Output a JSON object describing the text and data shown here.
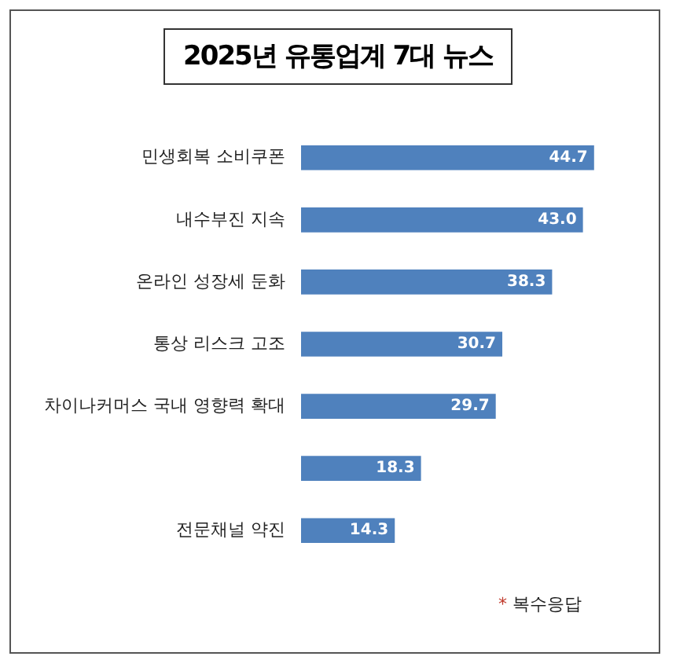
{
  "chart_data": {
    "type": "bar",
    "orientation": "horizontal",
    "title": "2025년 유통업계 7대 뉴스",
    "categories": [
      "민생회복 소비쿠폰",
      "내수부진 지속",
      "온라인 성장세 둔화",
      "통상 리스크 고조",
      "차이나커머스 국내 영향력 확대",
      null,
      "전문채널 약진"
    ],
    "values": [
      44.7,
      43.0,
      38.3,
      30.7,
      29.7,
      18.3,
      14.3
    ],
    "value_labels": [
      "44.7",
      "43.0",
      "38.3",
      "30.7",
      "29.7",
      "18.3",
      "14.3"
    ],
    "color": "#4f81bd",
    "grid": false,
    "legend": false,
    "annotations": [
      "* 복수응답"
    ]
  }
}
